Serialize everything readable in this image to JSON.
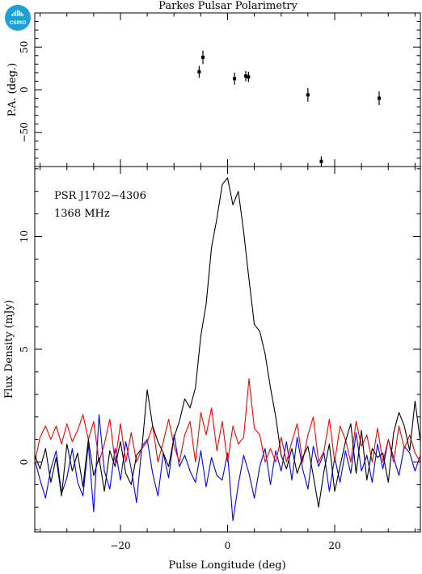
{
  "title": "Parkes Pulsar Polarimetry",
  "logo_text": "CSIRO",
  "colors": {
    "total_intensity": "#000000",
    "linear": "#ff0000",
    "circular": "#0000ff",
    "pa_points": "#000000",
    "logo": "#1e9fd8"
  },
  "chart_data": [
    {
      "type": "scatter",
      "ylabel": "P.A. (deg.)",
      "xlim": [
        -36,
        36
      ],
      "ylim": [
        -90,
        90
      ],
      "yticks": [
        -50,
        0,
        50
      ],
      "points": [
        {
          "x": -5.3,
          "y": 21,
          "err": 7
        },
        {
          "x": -4.6,
          "y": 38,
          "err": 8
        },
        {
          "x": 1.3,
          "y": 13,
          "err": 7
        },
        {
          "x": 3.4,
          "y": 16,
          "err": 6
        },
        {
          "x": 3.9,
          "y": 15,
          "err": 6
        },
        {
          "x": 15.0,
          "y": -6,
          "err": 8
        },
        {
          "x": 17.5,
          "y": -84,
          "err": 6
        },
        {
          "x": 28.3,
          "y": -10,
          "err": 8
        }
      ]
    },
    {
      "type": "line",
      "annotations": [
        "PSR J1702−4306",
        "1368 MHz"
      ],
      "xlabel": "Pulse Longitude (deg)",
      "ylabel": "Flux Density (mJy)",
      "xlim": [
        -36,
        36
      ],
      "ylim": [
        -3.1,
        13.1
      ],
      "xticks": [
        -20,
        0,
        20
      ],
      "yticks": [
        0,
        5,
        10
      ],
      "x": [
        -36,
        -35,
        -34,
        -33,
        -32,
        -31,
        -30,
        -29,
        -28,
        -27,
        -26,
        -25,
        -24,
        -23,
        -22,
        -21,
        -20,
        -19,
        -18,
        -17,
        -16,
        -15,
        -14,
        -13,
        -12,
        -11,
        -10,
        -9,
        -8,
        -7,
        -6,
        -5,
        -4,
        -3,
        -2,
        -1,
        0,
        1,
        2,
        3,
        4,
        5,
        6,
        7,
        8,
        9,
        10,
        11,
        12,
        13,
        14,
        15,
        16,
        17,
        18,
        19,
        20,
        21,
        22,
        23,
        24,
        25,
        26,
        27,
        28,
        29,
        30,
        31,
        32,
        33,
        34,
        35,
        36
      ],
      "series": [
        {
          "color_key": "total_intensity",
          "values": [
            0.3,
            -0.3,
            0.6,
            -0.9,
            0.2,
            -1.5,
            0.8,
            -0.4,
            0.4,
            -1.1,
            1.0,
            -0.6,
            0.2,
            -1.3,
            0.5,
            -0.2,
            0.9,
            -0.5,
            -1.0,
            0.3,
            0.6,
            3.2,
            1.6,
            0.9,
            0.4,
            -0.2,
            1.1,
            1.8,
            2.8,
            2.4,
            3.3,
            5.6,
            7.0,
            9.5,
            10.8,
            12.3,
            12.6,
            11.4,
            12.0,
            10.2,
            8.1,
            6.1,
            5.8,
            4.8,
            3.3,
            2.0,
            0.3,
            -0.3,
            0.6,
            -0.5,
            0.2,
            0.7,
            -0.6,
            -2.0,
            -0.4,
            0.8,
            -1.3,
            -0.2,
            0.9,
            1.7,
            -0.5,
            1.4,
            -0.8,
            0.6,
            0.2,
            0.4,
            -0.9,
            1.3,
            2.2,
            1.6,
            0.5,
            2.7,
            0.9
          ]
        },
        {
          "color_key": "linear",
          "values": [
            0,
            1.1,
            1.6,
            1.0,
            1.6,
            0.8,
            1.7,
            0.9,
            1.4,
            2.1,
            1.0,
            1.8,
            0,
            0.8,
            1.9,
            0,
            1.7,
            0,
            1.3,
            0,
            0.6,
            0.9,
            1.6,
            0,
            0.9,
            1.9,
            0.7,
            0,
            1.2,
            1.8,
            0,
            2.2,
            1.2,
            2.4,
            0.5,
            1.8,
            0,
            1.6,
            0.8,
            1.1,
            3.7,
            1.5,
            1.2,
            0,
            0.6,
            0,
            1.1,
            0,
            0.9,
            1.7,
            0,
            1.2,
            2.0,
            0,
            0.5,
            1.9,
            0,
            1.6,
            1.0,
            0,
            1.8,
            0.7,
            1.2,
            0,
            1.5,
            0,
            1.0,
            0,
            1.6,
            0.6,
            1.2,
            0.4,
            0
          ]
        },
        {
          "color_key": "circular",
          "values": [
            0.1,
            -0.8,
            -1.6,
            -0.3,
            0.5,
            -1.4,
            -0.7,
            0.6,
            -0.9,
            -1.5,
            0.8,
            -2.2,
            2.1,
            -0.4,
            -1.2,
            0.6,
            -0.8,
            0.9,
            -0.3,
            -1.8,
            0.7,
            1.0,
            -0.5,
            -1.5,
            0.4,
            -0.7,
            1.2,
            -0.2,
            0.3,
            -0.4,
            -0.9,
            0.5,
            -1.1,
            0.2,
            -0.6,
            -0.8,
            0.4,
            -2.6,
            -1.0,
            0.3,
            -0.5,
            -1.6,
            -0.2,
            0.6,
            -1.0,
            0.5,
            -0.4,
            0.9,
            -0.8,
            1.1,
            -0.3,
            -1.2,
            0.7,
            -0.2,
            0.4,
            -1.3,
            0.2,
            -0.9,
            0.5,
            -0.5,
            1.3,
            -0.4,
            0.3,
            -0.9,
            0.8,
            -0.3,
            1.0,
            0.2,
            -0.6,
            0.7,
            0.4,
            -0.4,
            0.3
          ]
        }
      ]
    }
  ]
}
